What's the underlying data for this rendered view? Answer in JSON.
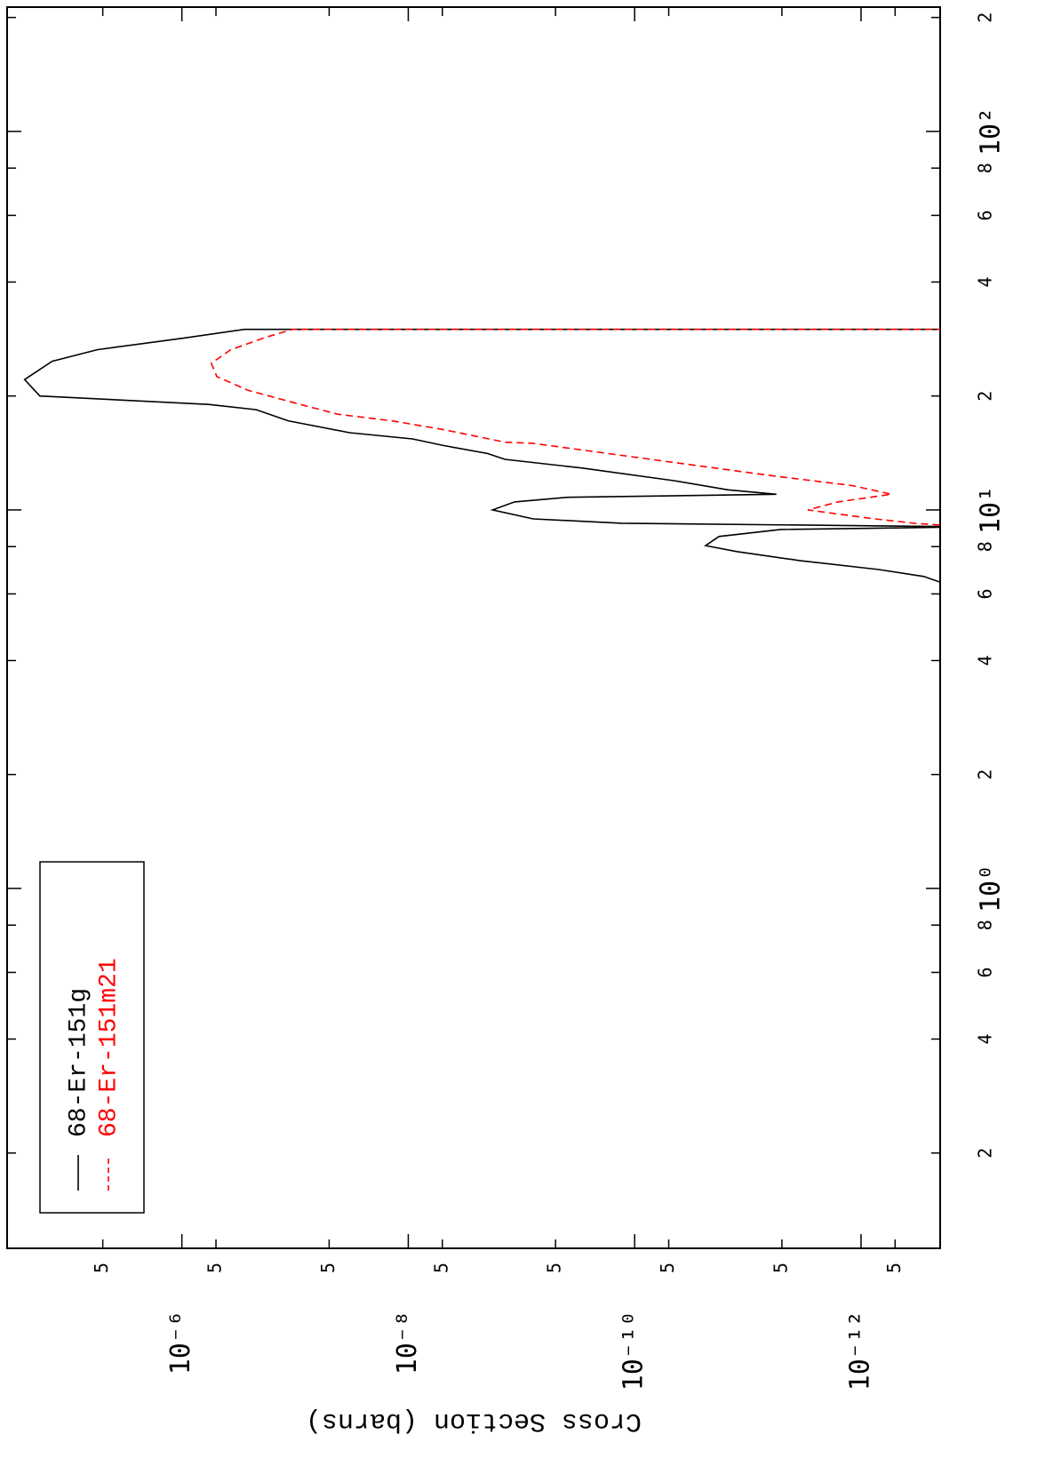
{
  "chart_data": {
    "type": "line",
    "y_label": "Cross Section (barns)",
    "xscale": "log",
    "yscale": "log",
    "legend": "upper left",
    "xlim": [
      0.112,
      213
    ],
    "ylim": [
      2e-13,
      3.5e-05
    ],
    "xticks": [
      {
        "value": 0.2,
        "label": "2"
      },
      {
        "value": 0.4,
        "label": "4"
      },
      {
        "value": 0.6,
        "label": "6"
      },
      {
        "value": 0.8,
        "label": "8"
      },
      {
        "value": 1,
        "label": "10⁰"
      },
      2,
      4,
      6,
      8,
      {
        "value": 10,
        "label": "10¹"
      },
      {
        "value": 20,
        "label": "2"
      },
      {
        "value": 40,
        "label": "4"
      },
      {
        "value": 60,
        "label": "6"
      },
      {
        "value": 80,
        "label": "8"
      },
      {
        "value": 100,
        "label": "10²"
      },
      {
        "value": 200,
        "label": "2"
      }
    ],
    "yticks": [
      {
        "value": 5e-06,
        "label": "5"
      },
      {
        "value": 1e-06,
        "label": "10⁻⁶"
      },
      {
        "value": 5e-07,
        "label": "5"
      },
      {
        "value": 5e-08,
        "label": "5"
      },
      {
        "value": 1e-08,
        "label": "10⁻⁸"
      },
      {
        "value": 5e-09,
        "label": "5"
      },
      {
        "value": 5e-10,
        "label": "5"
      },
      {
        "value": 1e-10,
        "label": "10⁻¹⁰"
      },
      {
        "value": 5e-11,
        "label": "5"
      },
      {
        "value": 5e-12,
        "label": "5"
      },
      {
        "value": 1e-12,
        "label": "10⁻¹²"
      },
      {
        "value": 5e-13,
        "label": "5"
      }
    ],
    "series": [
      {
        "name": "68-Er-151g",
        "color": "#000000",
        "line_style": "solid",
        "x": [
          6.0,
          6.67,
          6.96,
          7.35,
          7.76,
          8.05,
          8.51,
          8.88,
          9.02,
          9.22,
          9.47,
          10.0,
          10.5,
          10.8,
          11.0,
          11.3,
          11.95,
          12.9,
          13.6,
          14.1,
          14.8,
          15.4,
          16.0,
          17.2,
          18.4,
          19.0,
          20.0,
          22.1,
          24.7,
          26.5,
          28.4,
          30.0,
          30.0
        ],
        "values": [
          1e-13,
          2.8e-13,
          7e-13,
          3.5e-12,
          1.25e-11,
          2.36e-11,
          1.8e-11,
          5.1e-12,
          1e-13,
          1.3e-10,
          7.9e-10,
          1.8e-09,
          1.15e-09,
          3.9e-10,
          5.6e-12,
          1.5e-11,
          4.5e-11,
          2.9e-10,
          1.4e-09,
          2e-09,
          4.9e-09,
          9.2e-09,
          3.3e-08,
          1.15e-07,
          2.2e-07,
          5.8e-07,
          1.8e-05,
          2.45e-05,
          1.4e-05,
          5.6e-06,
          1e-06,
          2.8e-07,
          1e-13
        ]
      },
      {
        "name": "68-Er-151m21",
        "color": "#ff0000",
        "line_style": "dashed",
        "x": [
          9.0,
          9.22,
          9.5,
          10.0,
          10.5,
          11.0,
          11.6,
          12.3,
          13.3,
          15.0,
          15.1,
          16.3,
          17.2,
          17.9,
          19.1,
          20.7,
          22.5,
          24.4,
          26.5,
          28.6,
          30.0,
          30.0
        ],
        "values": [
          1e-13,
          3.4e-13,
          8.3e-13,
          2.95e-12,
          1.6e-12,
          5.4e-13,
          1.2e-12,
          6e-12,
          4.1e-11,
          8e-10,
          1.4e-09,
          4.9e-09,
          1.4e-08,
          4.2e-08,
          9.6e-08,
          2.6e-07,
          4.9e-07,
          5.5e-07,
          3.7e-07,
          1.8e-07,
          1.05e-07,
          1e-13
        ]
      }
    ]
  }
}
